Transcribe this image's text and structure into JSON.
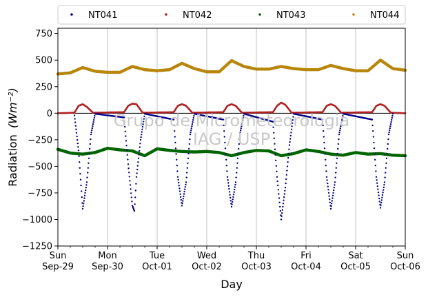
{
  "chart_data": {
    "type": "scatter",
    "title": "",
    "xlabel": "Day",
    "ylabel": "Radiation",
    "ylabel_units": "(Wm⁻²)",
    "ylim": [
      -1250,
      800
    ],
    "yticks": [
      -1250,
      -1000,
      -750,
      -500,
      -250,
      0,
      250,
      500,
      750
    ],
    "xlim": [
      "2024-09-29",
      "2024-10-06"
    ],
    "xticks": [
      {
        "day": "Sun",
        "date": "Sep-29"
      },
      {
        "day": "Mon",
        "date": "Sep-30"
      },
      {
        "day": "Tue",
        "date": "Oct-01"
      },
      {
        "day": "Wed",
        "date": "Oct-02"
      },
      {
        "day": "Thu",
        "date": "Oct-03"
      },
      {
        "day": "Fri",
        "date": "Oct-04"
      },
      {
        "day": "Sat",
        "date": "Oct-05"
      },
      {
        "day": "Sun",
        "date": "Oct-06"
      }
    ],
    "grid": "vertical",
    "legend_position": "top",
    "zero_line": true,
    "watermark": [
      "Grupo de Micrometeorologia",
      "IAG / USP"
    ],
    "series": [
      {
        "name": "NT041",
        "color": "#00008b",
        "points": [
          [
            "2024-09-29 08:00",
            -20
          ],
          [
            "2024-09-29 10:00",
            -350
          ],
          [
            "2024-09-29 12:00",
            -900
          ],
          [
            "2024-09-29 14:00",
            -650
          ],
          [
            "2024-09-29 16:00",
            -200
          ],
          [
            "2024-09-29 18:00",
            -5
          ],
          [
            "2024-09-30 08:00",
            -40
          ],
          [
            "2024-09-30 10:00",
            -480
          ],
          [
            "2024-09-30 12:00",
            -870
          ],
          [
            "2024-09-30 13:00",
            -920
          ],
          [
            "2024-09-30 14:00",
            -600
          ],
          [
            "2024-09-30 16:00",
            -250
          ],
          [
            "2024-09-30 18:00",
            -5
          ],
          [
            "2024-10-01 08:00",
            -60
          ],
          [
            "2024-10-01 10:00",
            -600
          ],
          [
            "2024-10-01 12:00",
            -870
          ],
          [
            "2024-10-01 14:00",
            -650
          ],
          [
            "2024-10-01 16:00",
            -200
          ],
          [
            "2024-10-01 18:00",
            -5
          ],
          [
            "2024-10-02 08:00",
            -60
          ],
          [
            "2024-10-02 10:00",
            -600
          ],
          [
            "2024-10-02 12:00",
            -880
          ],
          [
            "2024-10-02 14:00",
            -650
          ],
          [
            "2024-10-02 16:00",
            -200
          ],
          [
            "2024-10-02 18:00",
            -5
          ],
          [
            "2024-10-03 08:00",
            -80
          ],
          [
            "2024-10-03 10:00",
            -600
          ],
          [
            "2024-10-03 12:00",
            -1000
          ],
          [
            "2024-10-03 14:00",
            -700
          ],
          [
            "2024-10-03 16:00",
            -300
          ],
          [
            "2024-10-03 18:00",
            -5
          ],
          [
            "2024-10-04 08:00",
            -60
          ],
          [
            "2024-10-04 10:00",
            -600
          ],
          [
            "2024-10-04 12:00",
            -900
          ],
          [
            "2024-10-04 14:00",
            -650
          ],
          [
            "2024-10-04 16:00",
            -200
          ],
          [
            "2024-10-04 18:00",
            -5
          ],
          [
            "2024-10-05 08:00",
            -60
          ],
          [
            "2024-10-05 10:00",
            -600
          ],
          [
            "2024-10-05 12:00",
            -890
          ],
          [
            "2024-10-05 14:00",
            -650
          ],
          [
            "2024-10-05 16:00",
            -200
          ],
          [
            "2024-10-05 18:00",
            -5
          ]
        ]
      },
      {
        "name": "NT042",
        "color": "#b22222",
        "points": [
          [
            "2024-09-29 00:00",
            0
          ],
          [
            "2024-09-29 08:00",
            5
          ],
          [
            "2024-09-29 10:00",
            70
          ],
          [
            "2024-09-29 12:00",
            85
          ],
          [
            "2024-09-29 14:00",
            60
          ],
          [
            "2024-09-29 17:00",
            5
          ],
          [
            "2024-09-30 08:00",
            10
          ],
          [
            "2024-09-30 10:00",
            70
          ],
          [
            "2024-09-30 12:00",
            90
          ],
          [
            "2024-09-30 14:00",
            85
          ],
          [
            "2024-09-30 17:00",
            5
          ],
          [
            "2024-10-01 08:00",
            10
          ],
          [
            "2024-10-01 10:00",
            70
          ],
          [
            "2024-10-01 12:00",
            85
          ],
          [
            "2024-10-01 14:00",
            70
          ],
          [
            "2024-10-01 17:00",
            5
          ],
          [
            "2024-10-02 08:00",
            10
          ],
          [
            "2024-10-02 10:00",
            70
          ],
          [
            "2024-10-02 12:00",
            85
          ],
          [
            "2024-10-02 14:00",
            70
          ],
          [
            "2024-10-02 17:00",
            5
          ],
          [
            "2024-10-03 08:00",
            10
          ],
          [
            "2024-10-03 10:00",
            70
          ],
          [
            "2024-10-03 12:00",
            100
          ],
          [
            "2024-10-03 14:00",
            80
          ],
          [
            "2024-10-03 17:00",
            5
          ],
          [
            "2024-10-04 08:00",
            10
          ],
          [
            "2024-10-04 10:00",
            70
          ],
          [
            "2024-10-04 12:00",
            85
          ],
          [
            "2024-10-04 14:00",
            70
          ],
          [
            "2024-10-04 17:00",
            5
          ],
          [
            "2024-10-05 08:00",
            10
          ],
          [
            "2024-10-05 10:00",
            70
          ],
          [
            "2024-10-05 12:00",
            85
          ],
          [
            "2024-10-05 14:00",
            70
          ],
          [
            "2024-10-05 17:00",
            5
          ],
          [
            "2024-10-06 00:00",
            0
          ]
        ]
      },
      {
        "name": "NT043",
        "color": "#006400",
        "points": [
          [
            "2024-09-29 00:00",
            -340
          ],
          [
            "2024-09-29 06:00",
            -375
          ],
          [
            "2024-09-29 12:00",
            -385
          ],
          [
            "2024-09-29 18:00",
            -370
          ],
          [
            "2024-09-30 00:00",
            -330
          ],
          [
            "2024-09-30 06:00",
            -345
          ],
          [
            "2024-09-30 12:00",
            -355
          ],
          [
            "2024-09-30 18:00",
            -400
          ],
          [
            "2024-10-01 00:00",
            -335
          ],
          [
            "2024-10-01 06:00",
            -350
          ],
          [
            "2024-10-01 12:00",
            -360
          ],
          [
            "2024-10-01 18:00",
            -365
          ],
          [
            "2024-10-02 00:00",
            -360
          ],
          [
            "2024-10-02 06:00",
            -370
          ],
          [
            "2024-10-02 12:00",
            -400
          ],
          [
            "2024-10-02 18:00",
            -370
          ],
          [
            "2024-10-03 00:00",
            -350
          ],
          [
            "2024-10-03 06:00",
            -355
          ],
          [
            "2024-10-03 12:00",
            -400
          ],
          [
            "2024-10-03 18:00",
            -380
          ],
          [
            "2024-10-04 00:00",
            -345
          ],
          [
            "2024-10-04 06:00",
            -360
          ],
          [
            "2024-10-04 12:00",
            -385
          ],
          [
            "2024-10-04 18:00",
            -395
          ],
          [
            "2024-10-05 00:00",
            -370
          ],
          [
            "2024-10-05 06:00",
            -385
          ],
          [
            "2024-10-05 12:00",
            -380
          ],
          [
            "2024-10-05 18:00",
            -395
          ],
          [
            "2024-10-06 00:00",
            -400
          ]
        ]
      },
      {
        "name": "NT044",
        "color": "#b8860b",
        "points": [
          [
            "2024-09-29 00:00",
            370
          ],
          [
            "2024-09-29 06:00",
            380
          ],
          [
            "2024-09-29 12:00",
            430
          ],
          [
            "2024-09-29 18:00",
            395
          ],
          [
            "2024-09-30 00:00",
            385
          ],
          [
            "2024-09-30 06:00",
            385
          ],
          [
            "2024-09-30 12:00",
            440
          ],
          [
            "2024-09-30 18:00",
            410
          ],
          [
            "2024-10-01 00:00",
            400
          ],
          [
            "2024-10-01 06:00",
            410
          ],
          [
            "2024-10-01 12:00",
            470
          ],
          [
            "2024-10-01 18:00",
            420
          ],
          [
            "2024-10-02 00:00",
            390
          ],
          [
            "2024-10-02 06:00",
            390
          ],
          [
            "2024-10-02 12:00",
            495
          ],
          [
            "2024-10-02 18:00",
            440
          ],
          [
            "2024-10-03 00:00",
            415
          ],
          [
            "2024-10-03 06:00",
            415
          ],
          [
            "2024-10-03 12:00",
            440
          ],
          [
            "2024-10-03 18:00",
            420
          ],
          [
            "2024-10-04 00:00",
            410
          ],
          [
            "2024-10-04 06:00",
            410
          ],
          [
            "2024-10-04 12:00",
            450
          ],
          [
            "2024-10-04 18:00",
            420
          ],
          [
            "2024-10-05 00:00",
            400
          ],
          [
            "2024-10-05 06:00",
            400
          ],
          [
            "2024-10-05 12:00",
            500
          ],
          [
            "2024-10-05 18:00",
            420
          ],
          [
            "2024-10-06 00:00",
            405
          ]
        ]
      }
    ]
  }
}
